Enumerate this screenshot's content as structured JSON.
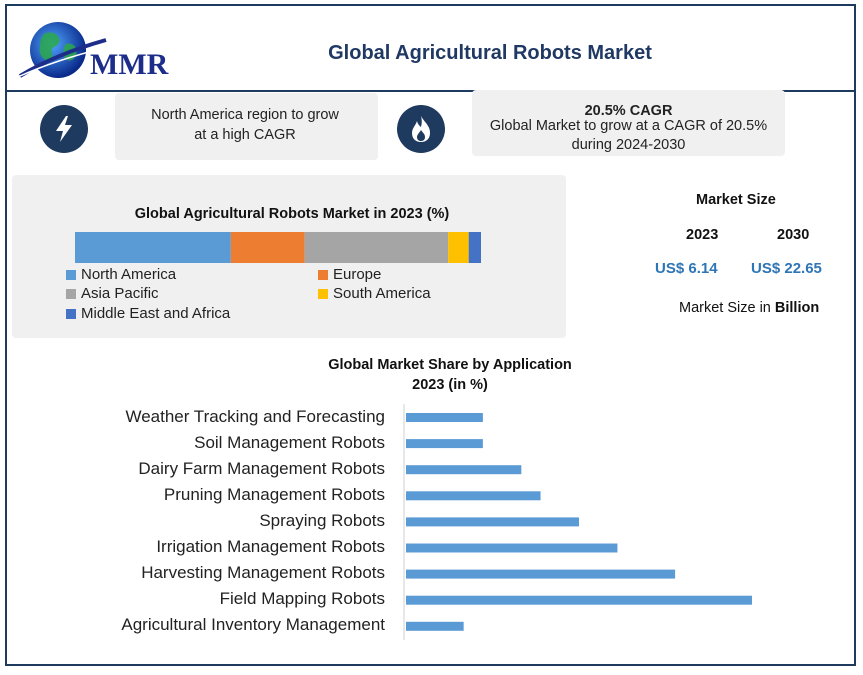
{
  "header": {
    "logo_text": "MMR",
    "title": "Global Agricultural Robots Market"
  },
  "highlights": {
    "region_text": "North America region to grow at a high CAGR",
    "cagr_title": "20.5% CAGR",
    "cagr_text": "Global Market to grow at a CAGR of 20.5% during 2024-2030",
    "icon_left": "lightning-bolt",
    "icon_right": "flame"
  },
  "market_size": {
    "heading": "Market Size",
    "year_1": "2023",
    "year_2": "2030",
    "value_1": "US$ 6.14",
    "value_2": "US$ 22.65",
    "unit_prefix": "Market Size in",
    "unit_bold": "Billion"
  },
  "chart_data": [
    {
      "type": "bar",
      "orientation": "stacked-horizontal",
      "title": "Global Agricultural Robots Market in 2023 (%)",
      "categories": [
        "North America",
        "Europe",
        "Asia Pacific",
        "South America",
        "Middle East and Africa"
      ],
      "values": [
        38,
        18,
        35,
        5,
        3
      ],
      "colors": [
        "#5b9bd5",
        "#ed7d31",
        "#a5a5a5",
        "#ffc000",
        "#4472c4"
      ],
      "legend": "bottom"
    },
    {
      "type": "bar",
      "orientation": "horizontal",
      "title_line1": "Global Market Share by Application",
      "title_line2": "2023 (in %)",
      "categories": [
        "Weather Tracking and Forecasting",
        "Soil Management Robots",
        "Dairy Farm Management Robots",
        "Pruning Management Robots",
        "Spraying Robots",
        "Irrigation Management Robots",
        "Harvesting Management Robots",
        "Field Mapping Robots",
        "Agricultural Inventory Management"
      ],
      "values": [
        4,
        4,
        6,
        7,
        9,
        11,
        14,
        18,
        3
      ],
      "xlim": [
        0,
        18
      ],
      "color": "#5b9bd5",
      "grid": false
    }
  ]
}
